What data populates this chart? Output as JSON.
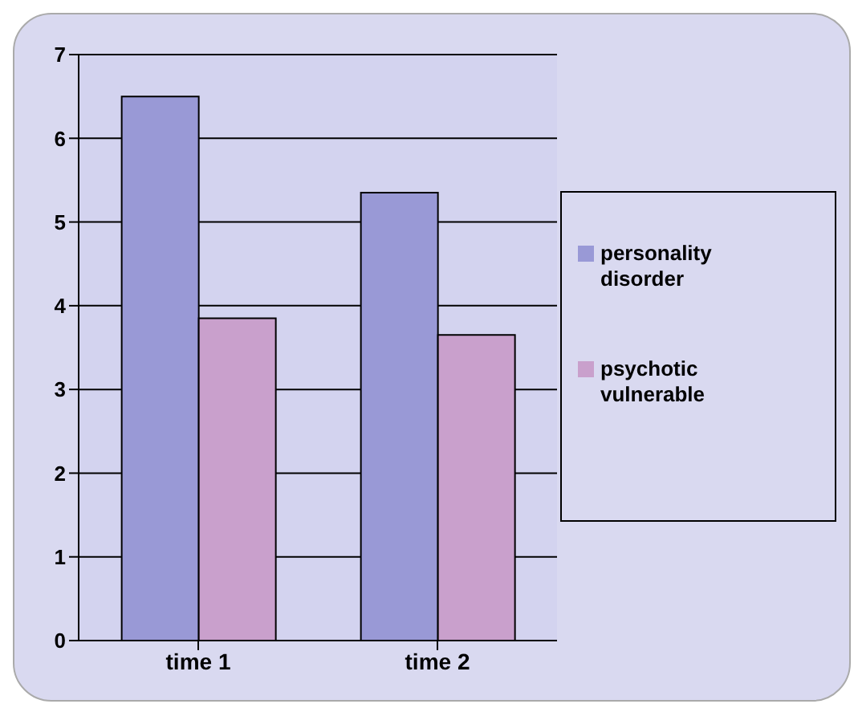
{
  "chart_data": {
    "type": "bar",
    "categories": [
      "time 1",
      "time 2"
    ],
    "series": [
      {
        "name": "personality disorder",
        "color": "#9999d6",
        "values": [
          6.5,
          5.35
        ]
      },
      {
        "name": "psychotic vulnerable",
        "color": "#c9a0cc",
        "values": [
          3.85,
          3.65
        ]
      }
    ],
    "ylim": [
      0,
      7
    ],
    "yticks": [
      0,
      1,
      2,
      3,
      4,
      5,
      6,
      7
    ],
    "grid": "y",
    "legend": "right"
  }
}
